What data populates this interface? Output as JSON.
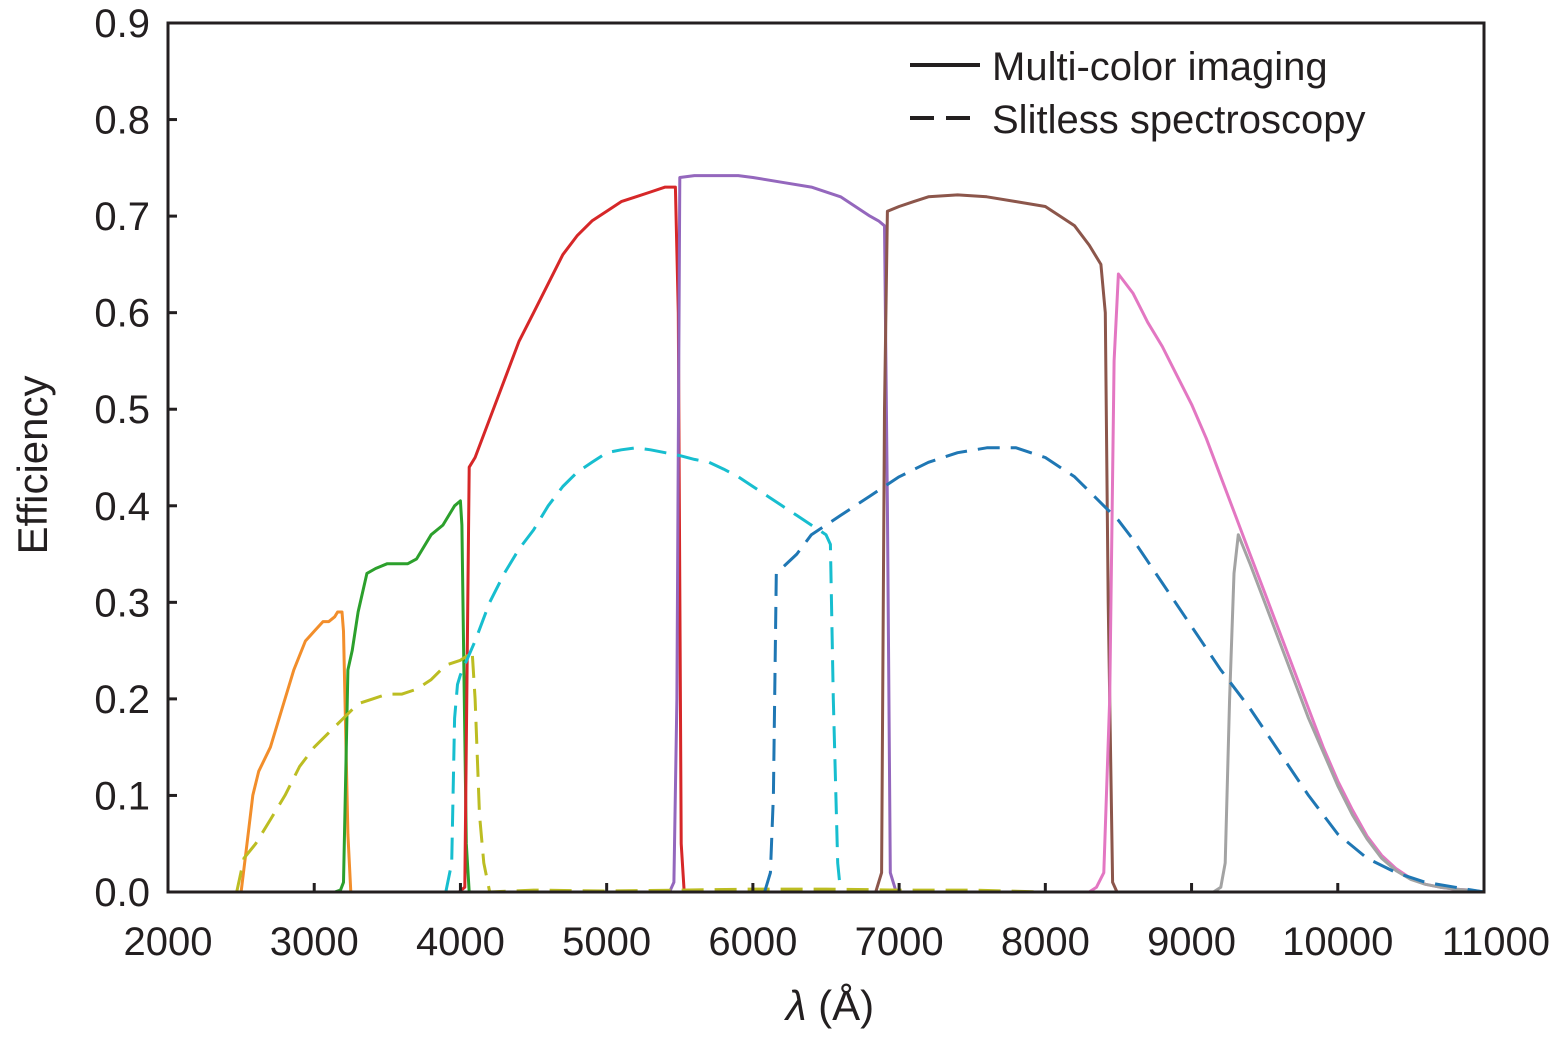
{
  "chart_data": {
    "type": "line",
    "xlabel_symbol": "λ",
    "xlabel_unit": " (Å)",
    "ylabel": "Efficiency",
    "xlim": [
      2000,
      11000
    ],
    "ylim": [
      0,
      0.9
    ],
    "x_ticks": [
      2000,
      3000,
      4000,
      5000,
      6000,
      7000,
      8000,
      9000,
      10000,
      11000
    ],
    "x_tick_labels": [
      "2000",
      "3000",
      "4000",
      "5000",
      "6000",
      "7000",
      "8000",
      "9000",
      "10000",
      "11000"
    ],
    "y_ticks": [
      0,
      0.1,
      0.2,
      0.3,
      0.4,
      0.5,
      0.6,
      0.7,
      0.8,
      0.9
    ],
    "y_tick_labels": [
      "0.0",
      "0.1",
      "0.2",
      "0.3",
      "0.4",
      "0.5",
      "0.6",
      "0.7",
      "0.8",
      "0.9"
    ],
    "grid": false,
    "legend_position": "top-right",
    "legend": [
      {
        "label": "Multi-color imaging",
        "style": "solid"
      },
      {
        "label": "Slitless spectroscopy",
        "style": "dashed"
      }
    ],
    "series": [
      {
        "style": "solid",
        "color": "#f28e2b",
        "x": [
          2500,
          2540,
          2580,
          2620,
          2700,
          2780,
          2860,
          2940,
          3000,
          3060,
          3100,
          3140,
          3160,
          3190,
          3200,
          3230,
          3250
        ],
        "y": [
          0,
          0.05,
          0.1,
          0.125,
          0.15,
          0.19,
          0.23,
          0.26,
          0.27,
          0.28,
          0.28,
          0.285,
          0.29,
          0.29,
          0.27,
          0.06,
          0
        ]
      },
      {
        "style": "solid",
        "color": "#2ca02c",
        "x": [
          3140,
          3180,
          3200,
          3230,
          3260,
          3300,
          3360,
          3420,
          3500,
          3560,
          3640,
          3700,
          3800,
          3880,
          3960,
          4000,
          4010,
          4040,
          4060
        ],
        "y": [
          0,
          0.002,
          0.01,
          0.23,
          0.25,
          0.29,
          0.33,
          0.335,
          0.34,
          0.34,
          0.34,
          0.345,
          0.37,
          0.38,
          0.4,
          0.405,
          0.38,
          0.05,
          0
        ]
      },
      {
        "style": "solid",
        "color": "#d62728",
        "x": [
          3990,
          4030,
          4060,
          4100,
          4200,
          4300,
          4400,
          4500,
          4600,
          4700,
          4800,
          4900,
          5000,
          5100,
          5200,
          5300,
          5400,
          5470,
          5490,
          5510,
          5530
        ],
        "y": [
          0,
          0.005,
          0.44,
          0.45,
          0.49,
          0.53,
          0.57,
          0.6,
          0.63,
          0.66,
          0.68,
          0.695,
          0.705,
          0.715,
          0.72,
          0.725,
          0.73,
          0.73,
          0.6,
          0.05,
          0
        ]
      },
      {
        "style": "solid",
        "color": "#9467bd",
        "x": [
          5430,
          5460,
          5480,
          5500,
          5600,
          5700,
          5800,
          5900,
          6000,
          6200,
          6400,
          6600,
          6800,
          6860,
          6900,
          6920,
          6940,
          6980
        ],
        "y": [
          0,
          0.01,
          0.2,
          0.74,
          0.742,
          0.742,
          0.742,
          0.742,
          0.74,
          0.735,
          0.73,
          0.72,
          0.7,
          0.695,
          0.69,
          0.4,
          0.02,
          0
        ]
      },
      {
        "style": "solid",
        "color": "#8c564b",
        "x": [
          6840,
          6880,
          6900,
          6920,
          7000,
          7100,
          7200,
          7400,
          7600,
          7800,
          8000,
          8100,
          8200,
          8300,
          8380,
          8410,
          8430,
          8460,
          8490
        ],
        "y": [
          0,
          0.02,
          0.5,
          0.705,
          0.71,
          0.715,
          0.72,
          0.722,
          0.72,
          0.715,
          0.71,
          0.7,
          0.69,
          0.67,
          0.65,
          0.6,
          0.3,
          0.01,
          0
        ]
      },
      {
        "style": "solid",
        "color": "#e377c2",
        "x": [
          8300,
          8350,
          8400,
          8440,
          8470,
          8500,
          8600,
          8700,
          8800,
          8900,
          9000,
          9100,
          9200,
          9300,
          9400,
          9500,
          9600,
          9700,
          9800,
          9900,
          10000,
          10100,
          10200,
          10300,
          10400,
          10500,
          10600,
          10700,
          10800,
          10900,
          11000
        ],
        "y": [
          0,
          0.005,
          0.02,
          0.2,
          0.55,
          0.64,
          0.62,
          0.59,
          0.565,
          0.535,
          0.505,
          0.47,
          0.43,
          0.39,
          0.35,
          0.31,
          0.27,
          0.23,
          0.19,
          0.15,
          0.115,
          0.085,
          0.058,
          0.038,
          0.024,
          0.014,
          0.008,
          0.005,
          0.003,
          0.002,
          0
        ]
      },
      {
        "style": "solid",
        "color": "#a3a3a3",
        "x": [
          9150,
          9200,
          9230,
          9260,
          9290,
          9320,
          9400,
          9500,
          9600,
          9700,
          9800,
          9900,
          10000,
          10100,
          10200,
          10300,
          10400,
          10500,
          10600,
          10700,
          10800,
          10900,
          11000
        ],
        "y": [
          0,
          0.005,
          0.03,
          0.2,
          0.33,
          0.37,
          0.34,
          0.3,
          0.26,
          0.22,
          0.18,
          0.145,
          0.11,
          0.08,
          0.055,
          0.035,
          0.022,
          0.013,
          0.008,
          0.005,
          0.003,
          0.002,
          0
        ]
      },
      {
        "style": "dashed",
        "color": "#bcbd22",
        "x": [
          2470,
          2520,
          2600,
          2700,
          2800,
          2900,
          3000,
          3100,
          3200,
          3300,
          3400,
          3500,
          3600,
          3700,
          3800,
          3900,
          4000,
          4050,
          4080,
          4100,
          4130,
          4160,
          4200,
          4500,
          5000,
          5500,
          6000,
          6500,
          7000,
          7500,
          8000
        ],
        "y": [
          0,
          0.035,
          0.05,
          0.075,
          0.1,
          0.13,
          0.15,
          0.165,
          0.18,
          0.195,
          0.2,
          0.205,
          0.205,
          0.21,
          0.22,
          0.235,
          0.24,
          0.245,
          0.25,
          0.2,
          0.08,
          0.03,
          0,
          0.002,
          0.001,
          0.002,
          0.003,
          0.003,
          0.002,
          0.002,
          0
        ]
      },
      {
        "style": "dashed",
        "color": "#17becf",
        "x": [
          3900,
          3940,
          3960,
          3980,
          4000,
          4100,
          4200,
          4300,
          4400,
          4500,
          4600,
          4700,
          4800,
          4900,
          5000,
          5100,
          5200,
          5300,
          5400,
          5500,
          5600,
          5700,
          5800,
          5900,
          6000,
          6100,
          6200,
          6300,
          6400,
          6500,
          6530,
          6550,
          6580,
          6600
        ],
        "y": [
          0,
          0.03,
          0.18,
          0.215,
          0.225,
          0.26,
          0.3,
          0.33,
          0.355,
          0.375,
          0.4,
          0.42,
          0.435,
          0.445,
          0.455,
          0.458,
          0.46,
          0.458,
          0.455,
          0.452,
          0.448,
          0.445,
          0.438,
          0.43,
          0.42,
          0.41,
          0.4,
          0.39,
          0.38,
          0.37,
          0.36,
          0.2,
          0.03,
          0
        ]
      },
      {
        "style": "dashed",
        "color": "#1f77b4",
        "x": [
          6080,
          6120,
          6140,
          6160,
          6300,
          6400,
          6500,
          6600,
          6800,
          7000,
          7200,
          7400,
          7600,
          7800,
          7900,
          8000,
          8100,
          8200,
          8300,
          8400,
          8500,
          8600,
          8800,
          9000,
          9200,
          9400,
          9600,
          9800,
          10000,
          10200,
          10400,
          10600,
          10800,
          11000
        ],
        "y": [
          0,
          0.02,
          0.1,
          0.33,
          0.35,
          0.37,
          0.38,
          0.39,
          0.41,
          0.43,
          0.445,
          0.455,
          0.46,
          0.46,
          0.455,
          0.45,
          0.44,
          0.43,
          0.415,
          0.4,
          0.385,
          0.365,
          0.32,
          0.275,
          0.23,
          0.19,
          0.145,
          0.1,
          0.06,
          0.035,
          0.02,
          0.01,
          0.005,
          0
        ]
      }
    ]
  }
}
